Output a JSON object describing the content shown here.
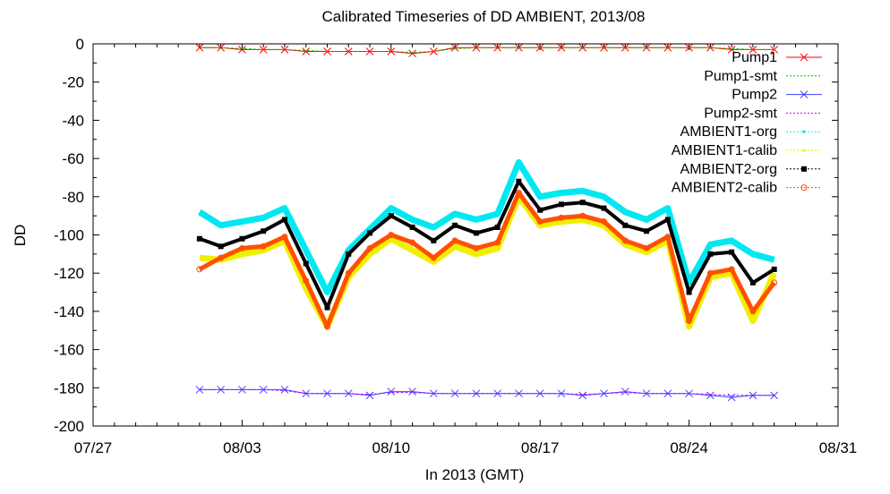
{
  "chart_data": {
    "type": "line",
    "title": "Calibrated Timeseries of DD AMBIENT, 2013/08",
    "xlabel": "In 2013 (GMT)",
    "ylabel": "DD",
    "xlim": [
      "2013-07-27",
      "2013-08-31"
    ],
    "ylim": [
      -200,
      0
    ],
    "x_ticks": [
      "07/27",
      "08/03",
      "08/10",
      "08/17",
      "08/24",
      "08/31"
    ],
    "y_ticks": [
      0,
      -20,
      -40,
      -60,
      -80,
      -100,
      -120,
      -140,
      -160,
      -180,
      -200
    ],
    "grid": false,
    "legend_position": "top-right",
    "x": [
      "2013-08-01",
      "2013-08-02",
      "2013-08-03",
      "2013-08-04",
      "2013-08-05",
      "2013-08-06",
      "2013-08-07",
      "2013-08-08",
      "2013-08-09",
      "2013-08-10",
      "2013-08-11",
      "2013-08-12",
      "2013-08-13",
      "2013-08-14",
      "2013-08-15",
      "2013-08-16",
      "2013-08-17",
      "2013-08-18",
      "2013-08-19",
      "2013-08-20",
      "2013-08-21",
      "2013-08-22",
      "2013-08-23",
      "2013-08-24",
      "2013-08-25",
      "2013-08-26",
      "2013-08-27",
      "2013-08-28"
    ],
    "series": [
      {
        "name": "Pump1",
        "color": "#ff0000",
        "marker": "x",
        "values": [
          -2,
          -2,
          -3,
          -3,
          -3,
          -4,
          -4,
          -4,
          -4,
          -4,
          -5,
          -4,
          -2,
          -2,
          -2,
          -2,
          -2,
          -2,
          -2,
          -2,
          -2,
          -2,
          -2,
          -2,
          -2,
          -3,
          -3,
          -3
        ]
      },
      {
        "name": "Pump1-smt",
        "color": "#00c000",
        "marker": "none",
        "values": [
          -2,
          -2,
          -2.5,
          -3,
          -3,
          -3.5,
          -4,
          -4,
          -4,
          -4,
          -4.5,
          -4,
          -2.5,
          -2,
          -2,
          -2,
          -2,
          -2,
          -2,
          -2,
          -2,
          -2,
          -2,
          -2,
          -2,
          -2.5,
          -3,
          -3
        ]
      },
      {
        "name": "Pump2",
        "color": "#4040ff",
        "marker": "x",
        "values": [
          -181,
          -181,
          -181,
          -181,
          -181,
          -183,
          -183,
          -183,
          -184,
          -182,
          -182,
          -183,
          -183,
          -183,
          -183,
          -183,
          -183,
          -183,
          -184,
          -183,
          -182,
          -183,
          -183,
          -183,
          -184,
          -185,
          -184,
          -184
        ]
      },
      {
        "name": "Pump2-smt",
        "color": "#c000ff",
        "marker": "none",
        "values": [
          -181,
          -181,
          -181,
          -181,
          -181.5,
          -183,
          -183,
          -183,
          -183.5,
          -182.5,
          -182.5,
          -183,
          -183,
          -183,
          -183,
          -183,
          -183,
          -183,
          -183.5,
          -183,
          -182.5,
          -183,
          -183,
          -183,
          -183.5,
          -184,
          -184,
          -184
        ]
      },
      {
        "name": "AMBIENT1-org",
        "color": "#00e8f0",
        "marker": "point",
        "values": [
          -88,
          -95,
          -93,
          -91,
          -86,
          -108,
          -130,
          -108,
          -97,
          -86,
          -92,
          -96,
          -89,
          -92,
          -89,
          -62,
          -80,
          -78,
          -77,
          -80,
          -88,
          -92,
          -86,
          -125,
          -105,
          -103,
          -110,
          -113
        ]
      },
      {
        "name": "AMBIENT1-calib",
        "color": "#f0f000",
        "marker": "point",
        "values": [
          -112,
          -113,
          -110,
          -108,
          -103,
          -128,
          -148,
          -122,
          -110,
          -102,
          -108,
          -114,
          -106,
          -110,
          -107,
          -80,
          -95,
          -93,
          -92,
          -95,
          -105,
          -109,
          -103,
          -148,
          -122,
          -120,
          -145,
          -120
        ]
      },
      {
        "name": "AMBIENT2-org",
        "color": "#000000",
        "marker": "square",
        "values": [
          -102,
          -106,
          -102,
          -98,
          -92,
          -115,
          -138,
          -110,
          -99,
          -90,
          -96,
          -103,
          -95,
          -99,
          -96,
          -72,
          -87,
          -84,
          -83,
          -86,
          -95,
          -98,
          -92,
          -130,
          -110,
          -109,
          -125,
          -118
        ]
      },
      {
        "name": "AMBIENT2-calib",
        "color": "#ff5000",
        "marker": "circle",
        "values": [
          -118,
          -112,
          -107,
          -106,
          -101,
          -124,
          -148,
          -120,
          -107,
          -100,
          -104,
          -112,
          -103,
          -107,
          -104,
          -78,
          -93,
          -91,
          -90,
          -93,
          -103,
          -107,
          -101,
          -145,
          -120,
          -118,
          -140,
          -125
        ]
      }
    ]
  }
}
